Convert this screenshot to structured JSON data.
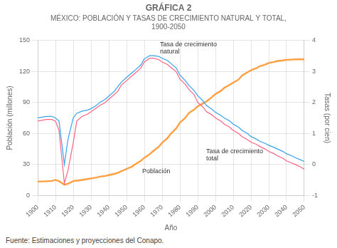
{
  "chart_data": {
    "type": "line",
    "title": "GRÁFICA 2",
    "subtitle": [
      "MÉXICO: POBLACIÓN Y TASAS DE CRECIMIENTO NATURAL Y TOTAL,",
      "1900-2050"
    ],
    "source": "Fuente: Estimaciones y proyecciones del Conapo.",
    "xlabel": "Año",
    "ylabel": "Población (millones)",
    "y2label": "Tasas (por cien)",
    "x": [
      1900,
      1902,
      1905,
      1908,
      1910,
      1912,
      1915,
      1917,
      1920,
      1922,
      1925,
      1928,
      1930,
      1933,
      1935,
      1938,
      1940,
      1943,
      1945,
      1947,
      1950,
      1953,
      1955,
      1958,
      1960,
      1963,
      1965,
      1968,
      1970,
      1973,
      1975,
      1978,
      1980,
      1983,
      1985,
      1988,
      1990,
      1993,
      1995,
      1998,
      2000,
      2003,
      2005,
      2008,
      2010,
      2013,
      2015,
      2018,
      2020,
      2023,
      2025,
      2028,
      2030,
      2033,
      2035,
      2038,
      2040,
      2043,
      2045,
      2048,
      2050
    ],
    "series": [
      {
        "axis": "y2",
        "values": [
          1.5,
          1.52,
          1.55,
          1.55,
          1.5,
          1.4,
          0.0,
          0.8,
          1.5,
          1.65,
          1.72,
          1.75,
          1.8,
          1.9,
          2.0,
          2.1,
          2.2,
          2.35,
          2.5,
          2.65,
          2.8,
          2.95,
          3.05,
          3.2,
          3.4,
          3.5,
          3.5,
          3.48,
          3.42,
          3.35,
          3.25,
          3.1,
          2.88,
          2.7,
          2.55,
          2.38,
          2.22,
          2.05,
          1.9,
          1.78,
          1.68,
          1.58,
          1.5,
          1.4,
          1.3,
          1.2,
          1.1,
          1.0,
          0.9,
          0.82,
          0.75,
          0.68,
          0.62,
          0.55,
          0.5,
          0.42,
          0.35,
          0.28,
          0.22,
          0.15,
          0.1
        ]
      },
      {
        "axis": "y2",
        "values": [
          1.4,
          1.42,
          1.45,
          1.45,
          1.4,
          1.1,
          -0.6,
          -0.2,
          0.7,
          1.4,
          1.55,
          1.62,
          1.7,
          1.82,
          1.9,
          2.0,
          2.1,
          2.25,
          2.35,
          2.55,
          2.7,
          2.85,
          2.95,
          3.1,
          3.3,
          3.42,
          3.42,
          3.38,
          3.3,
          3.22,
          3.12,
          2.98,
          2.75,
          2.58,
          2.42,
          2.25,
          2.0,
          1.85,
          1.7,
          1.6,
          1.5,
          1.4,
          1.3,
          1.2,
          1.1,
          1.0,
          0.9,
          0.8,
          0.72,
          0.65,
          0.58,
          0.5,
          0.42,
          0.35,
          0.28,
          0.2,
          0.12,
          0.05,
          0.0,
          -0.08,
          -0.15
        ]
      },
      {
        "values": [
          13.6,
          13.7,
          13.9,
          14.2,
          15.2,
          14.0,
          10.5,
          11.5,
          14.0,
          14.5,
          15.2,
          16.0,
          16.6,
          17.5,
          18.3,
          19.0,
          19.8,
          21.0,
          22.0,
          23.5,
          25.8,
          28.0,
          30.4,
          33.5,
          36.5,
          40.0,
          43.0,
          47.0,
          51.0,
          55.5,
          60.0,
          65.0,
          70.4,
          75.0,
          79.6,
          83.0,
          86.2,
          89.0,
          91.0,
          95.0,
          98.0,
          101.0,
          104.0,
          107.0,
          109.0,
          112.0,
          116.0,
          119.0,
          121.0,
          123.0,
          125.0,
          126.5,
          128.0,
          129.0,
          130.0,
          130.5,
          131.0,
          131.3,
          131.5,
          131.5,
          131.5
        ]
      }
    ],
    "xlim": [
      1900,
      2050
    ],
    "xticks": [
      1900,
      1910,
      1920,
      1930,
      1940,
      1950,
      1960,
      1970,
      1980,
      1990,
      2000,
      2010,
      2020,
      2030,
      2040,
      2050
    ],
    "ylim": [
      0,
      150
    ],
    "yticks": [
      0,
      30,
      60,
      90,
      120,
      150
    ],
    "y2lim": [
      -1,
      4
    ],
    "y2ticks": [
      -1,
      0,
      1,
      2,
      3,
      4
    ],
    "grid": true,
    "annotations": [
      {
        "text": "Tasa de crecimiento\nnatural",
        "x": 1968,
        "y": 3.52,
        "axis": "y2"
      },
      {
        "text": "Población",
        "x": 1958,
        "y": 20,
        "axis": "y"
      },
      {
        "text": "Tasa de crecimiento\ntotal",
        "x": 1994,
        "y": 0.08,
        "axis": "y2"
      }
    ]
  }
}
